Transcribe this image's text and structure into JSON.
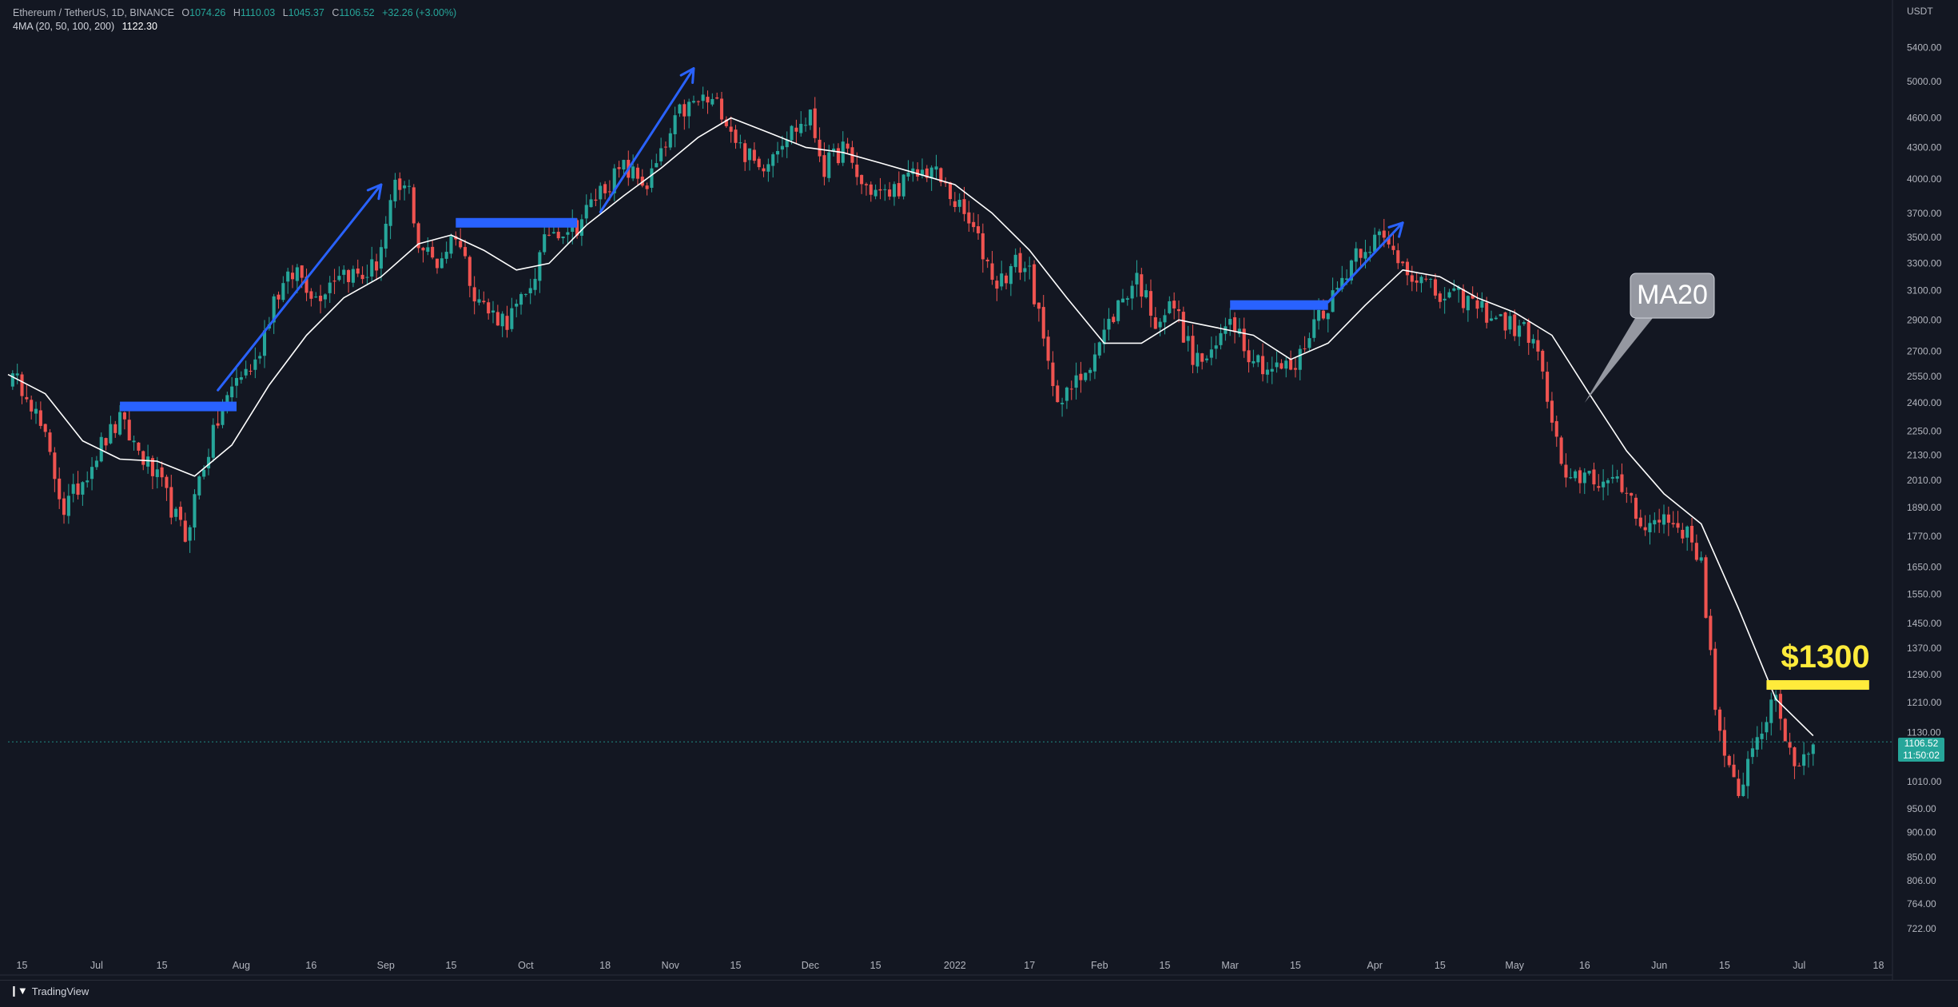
{
  "header": {
    "symbol": "Ethereum / TetherUS, 1D, BINANCE",
    "o_label": "O",
    "o_value": "1074.26",
    "h_label": "H",
    "h_value": "1110.03",
    "l_label": "L",
    "l_value": "1045.37",
    "c_label": "C",
    "c_value": "1106.52",
    "change": "+32.26 (+3.00%)",
    "ma_label": "4MA (20, 50, 100, 200)",
    "ma_value": "1122.30"
  },
  "price_axis": {
    "currency": "USDT"
  },
  "current_price": {
    "value": "1106.52",
    "countdown": "11:50:02"
  },
  "footer": {
    "brand": "TradingView"
  },
  "colors": {
    "background": "#131722",
    "up": "#26a69a",
    "down": "#ef5350",
    "ma": "#ffffff",
    "annotation_blue": "#2962ff",
    "annotation_yellow": "#ffeb3b",
    "callout_bg": "#9598a1"
  },
  "chart_data": {
    "type": "line",
    "title": "Ethereum / TetherUS, 1D, BINANCE",
    "xlabel": "",
    "ylabel": "USDT",
    "scale": "log",
    "ylim": [
      680,
      5700
    ],
    "xlim": [
      "2021-06-12",
      "2022-07-21"
    ],
    "grid": false,
    "y_ticks": [
      "5400.00",
      "5000.00",
      "4600.00",
      "4300.00",
      "4000.00",
      "3700.00",
      "3500.00",
      "3300.00",
      "3100.00",
      "2900.00",
      "2700.00",
      "2550.00",
      "2400.00",
      "2250.00",
      "2130.00",
      "2010.00",
      "1890.00",
      "1770.00",
      "1650.00",
      "1550.00",
      "1450.00",
      "1370.00",
      "1290.00",
      "1210.00",
      "1130.00",
      "1010.00",
      "950.00",
      "900.00",
      "850.00",
      "806.00",
      "764.00",
      "722.00"
    ],
    "x_ticks": [
      {
        "date": "2021-06-15",
        "label": "15"
      },
      {
        "date": "2021-07-01",
        "label": "Jul"
      },
      {
        "date": "2021-07-15",
        "label": "15"
      },
      {
        "date": "2021-08-01",
        "label": "Aug"
      },
      {
        "date": "2021-08-16",
        "label": "16"
      },
      {
        "date": "2021-09-01",
        "label": "Sep"
      },
      {
        "date": "2021-09-15",
        "label": "15"
      },
      {
        "date": "2021-10-01",
        "label": "Oct"
      },
      {
        "date": "2021-10-18",
        "label": "18"
      },
      {
        "date": "2021-11-01",
        "label": "Nov"
      },
      {
        "date": "2021-11-15",
        "label": "15"
      },
      {
        "date": "2021-12-01",
        "label": "Dec"
      },
      {
        "date": "2021-12-15",
        "label": "15"
      },
      {
        "date": "2022-01-01",
        "label": "2022"
      },
      {
        "date": "2022-01-17",
        "label": "17"
      },
      {
        "date": "2022-02-01",
        "label": "Feb"
      },
      {
        "date": "2022-02-15",
        "label": "15"
      },
      {
        "date": "2022-03-01",
        "label": "Mar"
      },
      {
        "date": "2022-03-15",
        "label": "15"
      },
      {
        "date": "2022-04-01",
        "label": "Apr"
      },
      {
        "date": "2022-04-15",
        "label": "15"
      },
      {
        "date": "2022-05-01",
        "label": "May"
      },
      {
        "date": "2022-05-16",
        "label": "16"
      },
      {
        "date": "2022-06-01",
        "label": "Jun"
      },
      {
        "date": "2022-06-15",
        "label": "15"
      },
      {
        "date": "2022-07-01",
        "label": "Jul"
      },
      {
        "date": "2022-07-18",
        "label": "18"
      }
    ],
    "price_path": [
      [
        "2021-06-12",
        2540
      ],
      [
        "2021-06-16",
        2480
      ],
      [
        "2021-06-20",
        2200
      ],
      [
        "2021-06-24",
        1880
      ],
      [
        "2021-06-27",
        1980
      ],
      [
        "2021-07-02",
        2180
      ],
      [
        "2021-07-06",
        2300
      ],
      [
        "2021-07-10",
        2150
      ],
      [
        "2021-07-15",
        1980
      ],
      [
        "2021-07-20",
        1760
      ],
      [
        "2021-07-23",
        2020
      ],
      [
        "2021-07-27",
        2300
      ],
      [
        "2021-07-31",
        2540
      ],
      [
        "2021-08-04",
        2620
      ],
      [
        "2021-08-08",
        3050
      ],
      [
        "2021-08-13",
        3250
      ],
      [
        "2021-08-17",
        3050
      ],
      [
        "2021-08-22",
        3250
      ],
      [
        "2021-08-27",
        3200
      ],
      [
        "2021-08-30",
        3300
      ],
      [
        "2021-09-03",
        3900
      ],
      [
        "2021-09-06",
        3900
      ],
      [
        "2021-09-08",
        3450
      ],
      [
        "2021-09-12",
        3300
      ],
      [
        "2021-09-16",
        3550
      ],
      [
        "2021-09-20",
        3100
      ],
      [
        "2021-09-23",
        2950
      ],
      [
        "2021-09-27",
        2900
      ],
      [
        "2021-10-01",
        3050
      ],
      [
        "2021-10-06",
        3550
      ],
      [
        "2021-10-12",
        3600
      ],
      [
        "2021-10-17",
        3900
      ],
      [
        "2021-10-22",
        4100
      ],
      [
        "2021-10-27",
        3950
      ],
      [
        "2021-10-31",
        4300
      ],
      [
        "2021-11-03",
        4650
      ],
      [
        "2021-11-08",
        4800
      ],
      [
        "2021-11-12",
        4700
      ],
      [
        "2021-11-16",
        4300
      ],
      [
        "2021-11-20",
        4100
      ],
      [
        "2021-11-25",
        4400
      ],
      [
        "2021-12-01",
        4600
      ],
      [
        "2021-12-04",
        4100
      ],
      [
        "2021-12-08",
        4300
      ],
      [
        "2021-12-12",
        3950
      ],
      [
        "2021-12-17",
        3850
      ],
      [
        "2021-12-22",
        4000
      ],
      [
        "2021-12-27",
        4100
      ],
      [
        "2022-01-01",
        3800
      ],
      [
        "2022-01-05",
        3550
      ],
      [
        "2022-01-10",
        3150
      ],
      [
        "2022-01-14",
        3300
      ],
      [
        "2022-01-17",
        3250
      ],
      [
        "2022-01-21",
        2600
      ],
      [
        "2022-01-24",
        2400
      ],
      [
        "2022-01-28",
        2550
      ],
      [
        "2022-02-01",
        2750
      ],
      [
        "2022-02-05",
        3000
      ],
      [
        "2022-02-09",
        3200
      ],
      [
        "2022-02-13",
        2900
      ],
      [
        "2022-02-17",
        3000
      ],
      [
        "2022-02-21",
        2650
      ],
      [
        "2022-02-25",
        2650
      ],
      [
        "2022-03-01",
        2950
      ],
      [
        "2022-03-05",
        2700
      ],
      [
        "2022-03-09",
        2600
      ],
      [
        "2022-03-15",
        2600
      ],
      [
        "2022-03-19",
        2900
      ],
      [
        "2022-03-23",
        3050
      ],
      [
        "2022-03-28",
        3400
      ],
      [
        "2022-04-02",
        3500
      ],
      [
        "2022-04-06",
        3350
      ],
      [
        "2022-04-10",
        3200
      ],
      [
        "2022-04-15",
        3050
      ],
      [
        "2022-04-20",
        3050
      ],
      [
        "2022-04-25",
        2950
      ],
      [
        "2022-05-01",
        2850
      ],
      [
        "2022-05-05",
        2800
      ],
      [
        "2022-05-09",
        2300
      ],
      [
        "2022-05-12",
        1980
      ],
      [
        "2022-05-16",
        2050
      ],
      [
        "2022-05-20",
        2000
      ],
      [
        "2022-05-25",
        1970
      ],
      [
        "2022-05-29",
        1800
      ],
      [
        "2022-06-02",
        1850
      ],
      [
        "2022-06-06",
        1800
      ],
      [
        "2022-06-10",
        1680
      ],
      [
        "2022-06-13",
        1200
      ],
      [
        "2022-06-15",
        1050
      ],
      [
        "2022-06-18",
        990
      ],
      [
        "2022-06-22",
        1130
      ],
      [
        "2022-06-26",
        1210
      ],
      [
        "2022-06-30",
        1050
      ],
      [
        "2022-07-04",
        1100
      ]
    ],
    "ma20_label": "MA20",
    "ma20": [
      [
        "2021-06-12",
        2560
      ],
      [
        "2021-06-20",
        2450
      ],
      [
        "2021-06-28",
        2200
      ],
      [
        "2021-07-06",
        2110
      ],
      [
        "2021-07-14",
        2100
      ],
      [
        "2021-07-22",
        2030
      ],
      [
        "2021-07-30",
        2180
      ],
      [
        "2021-08-07",
        2500
      ],
      [
        "2021-08-15",
        2800
      ],
      [
        "2021-08-23",
        3050
      ],
      [
        "2021-08-31",
        3200
      ],
      [
        "2021-09-08",
        3450
      ],
      [
        "2021-09-15",
        3520
      ],
      [
        "2021-09-22",
        3400
      ],
      [
        "2021-09-29",
        3250
      ],
      [
        "2021-10-06",
        3300
      ],
      [
        "2021-10-14",
        3600
      ],
      [
        "2021-10-22",
        3850
      ],
      [
        "2021-10-30",
        4100
      ],
      [
        "2021-11-07",
        4400
      ],
      [
        "2021-11-14",
        4600
      ],
      [
        "2021-11-22",
        4450
      ],
      [
        "2021-11-30",
        4300
      ],
      [
        "2021-12-08",
        4250
      ],
      [
        "2021-12-16",
        4150
      ],
      [
        "2021-12-24",
        4050
      ],
      [
        "2022-01-01",
        3950
      ],
      [
        "2022-01-09",
        3700
      ],
      [
        "2022-01-17",
        3400
      ],
      [
        "2022-01-25",
        3050
      ],
      [
        "2022-02-02",
        2750
      ],
      [
        "2022-02-10",
        2750
      ],
      [
        "2022-02-18",
        2900
      ],
      [
        "2022-02-26",
        2850
      ],
      [
        "2022-03-06",
        2800
      ],
      [
        "2022-03-14",
        2650
      ],
      [
        "2022-03-22",
        2750
      ],
      [
        "2022-03-30",
        3000
      ],
      [
        "2022-04-07",
        3250
      ],
      [
        "2022-04-15",
        3200
      ],
      [
        "2022-04-23",
        3050
      ],
      [
        "2022-05-01",
        2950
      ],
      [
        "2022-05-09",
        2800
      ],
      [
        "2022-05-17",
        2450
      ],
      [
        "2022-05-25",
        2150
      ],
      [
        "2022-06-02",
        1950
      ],
      [
        "2022-06-10",
        1820
      ],
      [
        "2022-06-18",
        1500
      ],
      [
        "2022-06-26",
        1220
      ],
      [
        "2022-07-04",
        1122
      ]
    ],
    "annotations": [
      {
        "type": "level",
        "from": "2021-07-06",
        "to": "2021-07-31",
        "price": 2380,
        "color": "#2962ff"
      },
      {
        "type": "arrow",
        "from": [
          "2021-07-27",
          2470
        ],
        "to": [
          "2021-08-31",
          3950
        ],
        "color": "#2962ff"
      },
      {
        "type": "level",
        "from": "2021-09-16",
        "to": "2021-10-12",
        "price": 3620,
        "color": "#2962ff"
      },
      {
        "type": "arrow",
        "from": [
          "2021-10-17",
          3710
        ],
        "to": [
          "2021-11-06",
          5150
        ],
        "color": "#2962ff"
      },
      {
        "type": "level",
        "from": "2022-03-01",
        "to": "2022-03-22",
        "price": 3000,
        "color": "#2962ff"
      },
      {
        "type": "arrow",
        "from": [
          "2022-03-22",
          3020
        ],
        "to": [
          "2022-04-07",
          3620
        ],
        "color": "#2962ff"
      },
      {
        "type": "level",
        "from": "2022-06-24",
        "to": "2022-07-16",
        "price": 1260,
        "label": "$1300",
        "color": "#ffeb3b"
      },
      {
        "type": "callout",
        "text": "MA20",
        "target": [
          "2022-05-16",
          2400
        ]
      }
    ]
  }
}
